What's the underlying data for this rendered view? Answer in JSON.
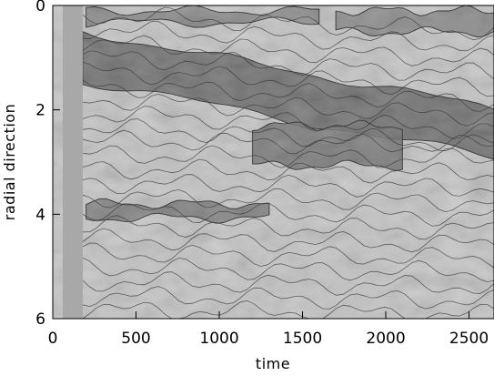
{
  "chart_data": {
    "type": "heatmap",
    "title": "",
    "xlabel": "time",
    "ylabel": "radial direction",
    "xlim": [
      0,
      2650
    ],
    "ylim": [
      6,
      0
    ],
    "x_ticks": [
      0,
      500,
      1000,
      1500,
      2000,
      2500
    ],
    "y_ticks": [
      0,
      2,
      4,
      6
    ],
    "x_tick_labels": [
      "0",
      "500",
      "1000",
      "1500",
      "2000",
      "2500"
    ],
    "y_tick_labels": [
      "0",
      "2",
      "4",
      "6"
    ],
    "colormap": "grayscale",
    "contours": true,
    "grid": false,
    "bands": [
      {
        "radial_start": 0.5,
        "radial_end": 2.6,
        "time_start": 180,
        "time_end": 2650,
        "darkness": 0.85
      },
      {
        "radial_start": 2.3,
        "radial_end": 4.0,
        "time_start": 1200,
        "time_end": 2100,
        "darkness": 0.75
      },
      {
        "radial_start": 3.8,
        "radial_end": 4.4,
        "time_start": 200,
        "time_end": 1300,
        "darkness": 0.7
      },
      {
        "radial_start": 0.1,
        "radial_end": 0.6,
        "time_start": 200,
        "time_end": 1600,
        "darkness": 0.6
      },
      {
        "radial_start": 0.1,
        "radial_end": 1.0,
        "time_start": 1700,
        "time_end": 2650,
        "darkness": 0.6
      }
    ]
  }
}
